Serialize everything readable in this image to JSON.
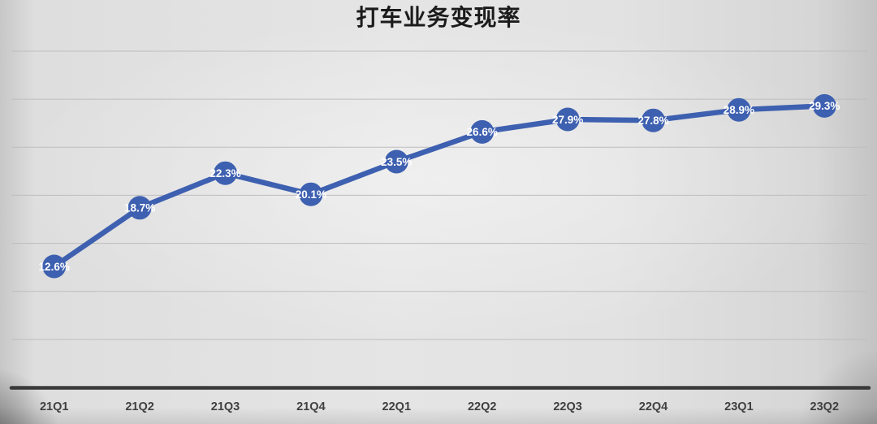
{
  "slide": {
    "title": "打车业务变现率"
  },
  "chart_data": {
    "type": "line",
    "title": "打车业务变现率",
    "categories": [
      "21Q1",
      "21Q2",
      "21Q3",
      "21Q4",
      "22Q1",
      "22Q2",
      "22Q3",
      "22Q4",
      "23Q1",
      "23Q2"
    ],
    "values": [
      12.6,
      18.7,
      22.3,
      20.1,
      23.5,
      26.6,
      27.9,
      27.8,
      28.9,
      29.3
    ],
    "data_labels": [
      "12.6%",
      "18.7%",
      "22.3%",
      "20.1%",
      "23.5%",
      "26.6%",
      "27.9%",
      "27.8%",
      "28.9%",
      "29.3%"
    ],
    "xlabel": "",
    "ylabel": "",
    "ylim": [
      0,
      35
    ],
    "y_gridline_step": 5,
    "grid": "horizontal",
    "legend": "none",
    "colors": {
      "line": "#3e60b0",
      "marker": "#3e60b0",
      "data_label_text": "#ffffff",
      "axis_line": "#3b3b3b",
      "tick_label": "#404040",
      "gridline": "#bdbdbd",
      "title": "#1b1b1b"
    }
  }
}
